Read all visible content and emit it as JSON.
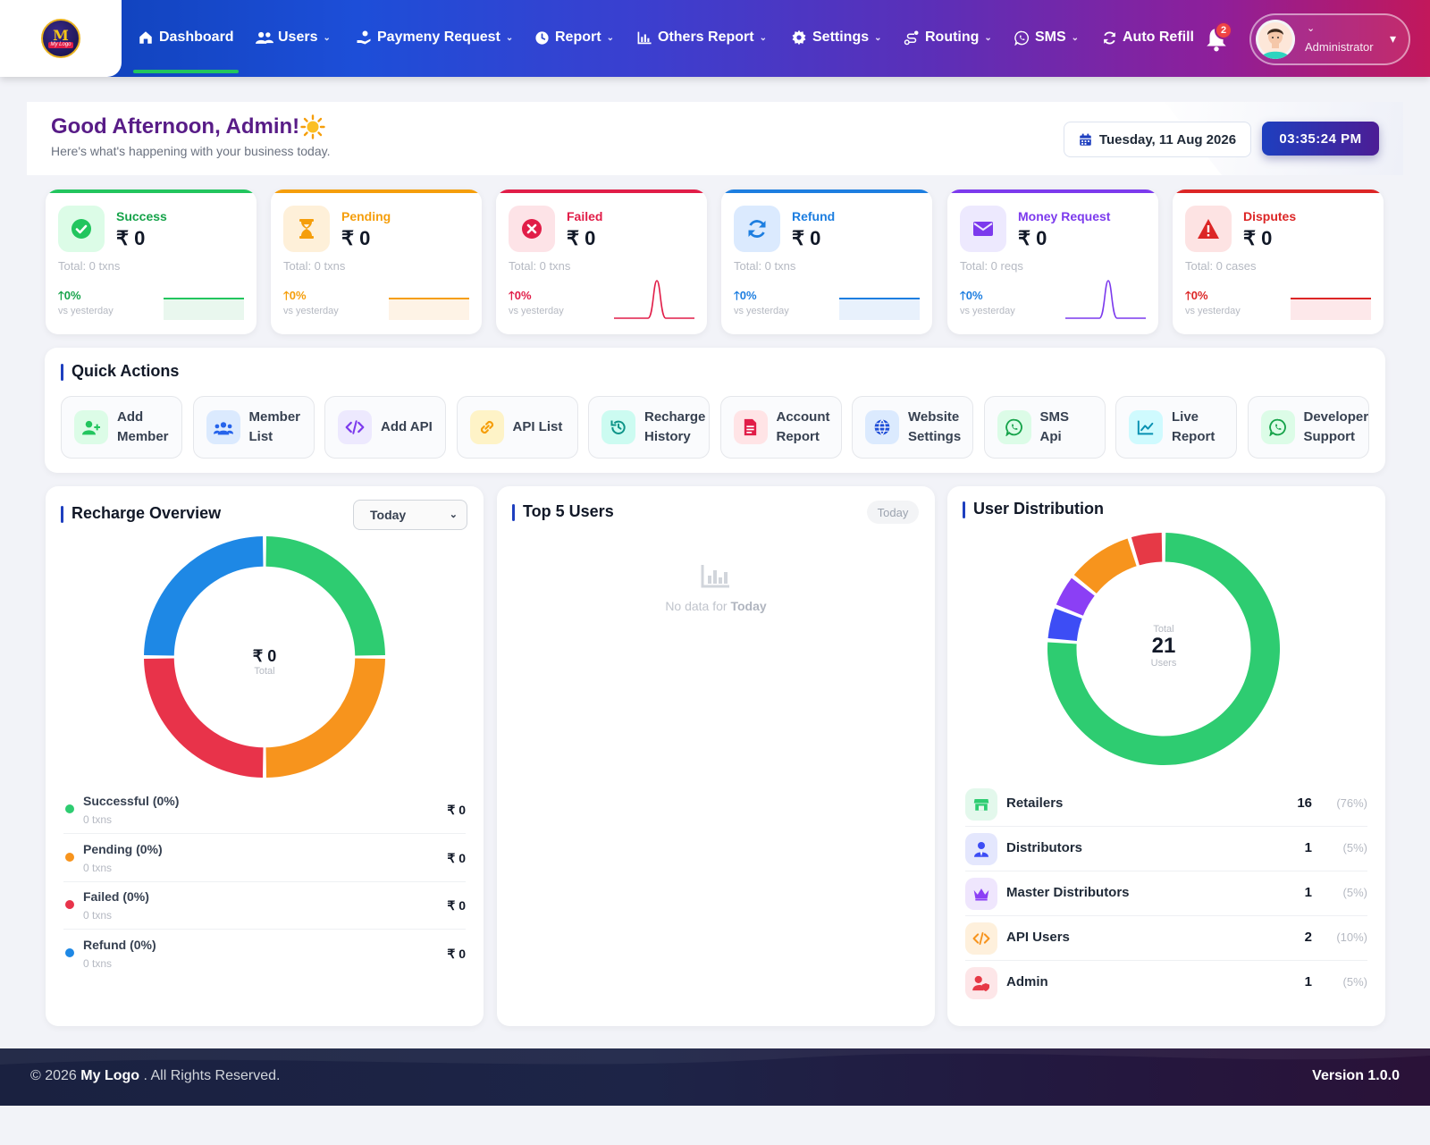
{
  "nav": {
    "logo_text": "My Logo",
    "items": [
      {
        "label": "Dashboard",
        "icon": "home-icon"
      },
      {
        "label": "Users",
        "icon": "users-icon"
      },
      {
        "label": "Paymeny Request",
        "icon": "hand-money-icon"
      },
      {
        "label": "Report",
        "icon": "clock-icon"
      },
      {
        "label": "Others Report",
        "icon": "bar-chart-icon"
      },
      {
        "label": "Settings",
        "icon": "gear-icon"
      },
      {
        "label": "Routing",
        "icon": "route-icon"
      },
      {
        "label": "SMS",
        "icon": "whatsapp-icon"
      },
      {
        "label": "Auto Refill",
        "icon": "refresh-icon"
      }
    ],
    "notification_count": "2",
    "profile_role": "Administrator"
  },
  "greeting": {
    "title": "Good Afternoon, Admin!",
    "subtitle": "Here's what's happening with your business today.",
    "date": "Tuesday, 11 Aug 2026",
    "time": "03:35:24 PM"
  },
  "stats": [
    {
      "label": "Success",
      "value": "₹ 0",
      "total": "Total: 0 txns",
      "change": "0%",
      "vs": "vs yesterday",
      "color": "#22c55e",
      "icon": "check-circle-icon"
    },
    {
      "label": "Pending",
      "value": "₹ 0",
      "total": "Total: 0 txns",
      "change": "0%",
      "vs": "vs yesterday",
      "color": "#f59e0b",
      "icon": "hourglass-icon"
    },
    {
      "label": "Failed",
      "value": "₹ 0",
      "total": "Total: 0 txns",
      "change": "0%",
      "vs": "vs yesterday",
      "color": "#e11d48",
      "icon": "x-circle-icon"
    },
    {
      "label": "Refund",
      "value": "₹ 0",
      "total": "Total: 0 txns",
      "change": "0%",
      "vs": "vs yesterday",
      "color": "#1d7ee0",
      "icon": "refresh-icon"
    },
    {
      "label": "Money Request",
      "value": "₹ 0",
      "total": "Total: 0 reqs",
      "change": "0%",
      "vs": "vs yesterday",
      "color": "#7c3aed",
      "icon": "envelope-icon"
    },
    {
      "label": "Disputes",
      "value": "₹ 0",
      "total": "Total: 0 cases",
      "change": "0%",
      "vs": "vs yesterday",
      "color": "#dc2626",
      "icon": "warning-icon"
    }
  ],
  "quick_actions": {
    "title": "Quick Actions",
    "items": [
      {
        "line1": "Add",
        "line2": "Member",
        "icon": "user-plus-icon",
        "color": "#22c55e",
        "bg": "#dcfce7"
      },
      {
        "line1": "Member",
        "line2": "List",
        "icon": "users-icon",
        "color": "#2563eb",
        "bg": "#dbeafe"
      },
      {
        "line1": "Add API",
        "line2": "",
        "icon": "code-icon",
        "color": "#7c3aed",
        "bg": "#ede9fe"
      },
      {
        "line1": "API List",
        "line2": "",
        "icon": "link-icon",
        "color": "#f59e0b",
        "bg": "#fef3c7"
      },
      {
        "line1": "Recharge",
        "line2": "History",
        "icon": "history-icon",
        "color": "#0d9488",
        "bg": "#ccfbf1"
      },
      {
        "line1": "Account",
        "line2": "Report",
        "icon": "document-icon",
        "color": "#e11d48",
        "bg": "#ffe4e6"
      },
      {
        "line1": "Website",
        "line2": "Settings",
        "icon": "globe-icon",
        "color": "#1d4ed8",
        "bg": "#dbeafe"
      },
      {
        "line1": "SMS",
        "line2": "Api",
        "icon": "whatsapp-icon",
        "color": "#16a34a",
        "bg": "#dcfce7"
      },
      {
        "line1": "Live",
        "line2": "Report",
        "icon": "line-chart-icon",
        "color": "#0891b2",
        "bg": "#cffafe"
      },
      {
        "line1": "Developer",
        "line2": "Support",
        "icon": "whatsapp-icon",
        "color": "#16a34a",
        "bg": "#dcfce7"
      }
    ]
  },
  "recharge": {
    "title": "Recharge Overview",
    "filter": "Today",
    "center_value": "₹ 0",
    "center_label": "Total",
    "legend": [
      {
        "name": "Successful (0%)",
        "sub": "0 txns",
        "value": "₹ 0",
        "color": "#2ecc71"
      },
      {
        "name": "Pending (0%)",
        "sub": "0 txns",
        "value": "₹ 0",
        "color": "#f7941d"
      },
      {
        "name": "Failed (0%)",
        "sub": "0 txns",
        "value": "₹ 0",
        "color": "#e8334a"
      },
      {
        "name": "Refund (0%)",
        "sub": "0 txns",
        "value": "₹ 0",
        "color": "#1e88e5"
      }
    ]
  },
  "top_users": {
    "title": "Top 5 Users",
    "badge": "Today",
    "empty_prefix": "No data for",
    "empty_period": "Today"
  },
  "distribution": {
    "title": "User Distribution",
    "center_top": "Total",
    "center_value": "21",
    "center_bottom": "Users",
    "rows": [
      {
        "name": "Retailers",
        "count": 16,
        "pct": "(76%)",
        "color": "#2ecc71",
        "icon": "store-icon"
      },
      {
        "name": "Distributors",
        "count": 1,
        "pct": "(5%)",
        "color": "#3d4df5",
        "icon": "user-tie-icon"
      },
      {
        "name": "Master Distributors",
        "count": 1,
        "pct": "(5%)",
        "color": "#8b3ff5",
        "icon": "crown-icon"
      },
      {
        "name": "API Users",
        "count": 2,
        "pct": "(10%)",
        "color": "#f7941d",
        "icon": "code-icon"
      },
      {
        "name": "Admin",
        "count": 1,
        "pct": "(5%)",
        "color": "#e63946",
        "icon": "user-shield-icon"
      }
    ]
  },
  "footer": {
    "prefix": "© 2026",
    "brand": "My Logo",
    "suffix": ". All Rights Reserved.",
    "version": "Version 1.0.0"
  }
}
